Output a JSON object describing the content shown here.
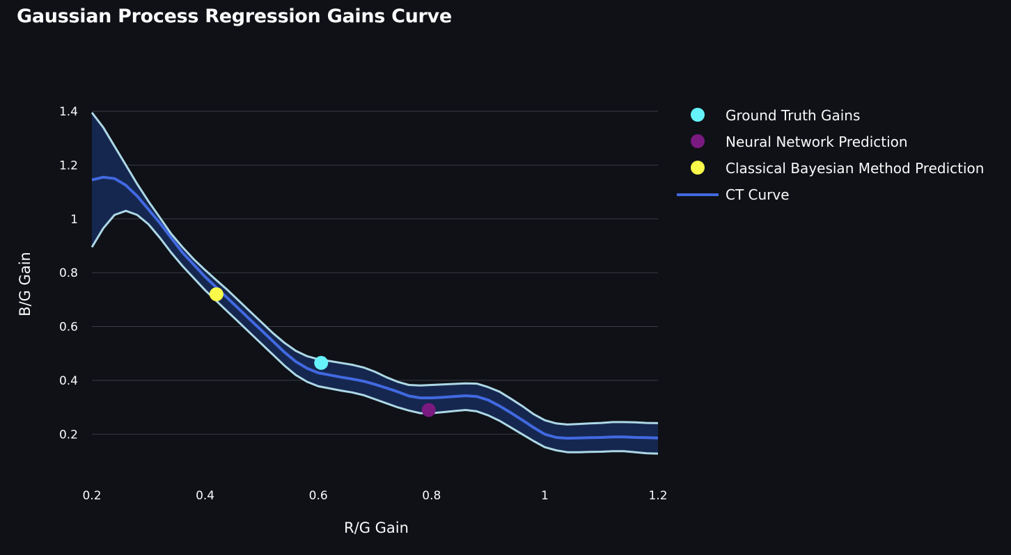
{
  "chart_data": {
    "type": "line",
    "title": "Gaussian Process Regression Gains Curve",
    "xlabel": "R/G Gain",
    "ylabel": "B/G Gain",
    "xlim": [
      0.2,
      1.2
    ],
    "ylim": [
      0.1,
      1.4
    ],
    "x_ticks": [
      "0.2",
      "0.4",
      "0.6",
      "0.8",
      "1",
      "1.2"
    ],
    "y_ticks": [
      "0.2",
      "0.4",
      "0.6",
      "0.8",
      "1",
      "1.2",
      "1.4"
    ],
    "grid": true,
    "legend_position": "right",
    "colors": {
      "background": "#0f1117",
      "grid": "#3a3d46",
      "ct_curve": "#4169e1",
      "band_fill": "#16274f",
      "band_edge": "#add8e6",
      "ground_truth": "#66f2fa",
      "neural_network": "#7a1a80",
      "bayesian": "#fafa4a"
    },
    "ct_curve": {
      "name": "CT Curve",
      "x": [
        0.2,
        0.22,
        0.24,
        0.26,
        0.28,
        0.3,
        0.32,
        0.34,
        0.36,
        0.38,
        0.4,
        0.42,
        0.44,
        0.46,
        0.48,
        0.5,
        0.52,
        0.54,
        0.56,
        0.58,
        0.6,
        0.62,
        0.64,
        0.66,
        0.68,
        0.7,
        0.72,
        0.74,
        0.76,
        0.78,
        0.8,
        0.82,
        0.84,
        0.86,
        0.88,
        0.9,
        0.92,
        0.94,
        0.96,
        0.98,
        1.0,
        1.02,
        1.04,
        1.06,
        1.08,
        1.1,
        1.12,
        1.14,
        1.16,
        1.18,
        1.2
      ],
      "y": [
        1.145,
        1.155,
        1.15,
        1.125,
        1.085,
        1.035,
        0.985,
        0.93,
        0.875,
        0.83,
        0.785,
        0.745,
        0.705,
        0.665,
        0.625,
        0.585,
        0.545,
        0.505,
        0.47,
        0.445,
        0.428,
        0.42,
        0.412,
        0.405,
        0.397,
        0.385,
        0.372,
        0.358,
        0.342,
        0.335,
        0.335,
        0.337,
        0.34,
        0.343,
        0.34,
        0.327,
        0.305,
        0.28,
        0.253,
        0.225,
        0.2,
        0.188,
        0.185,
        0.186,
        0.187,
        0.188,
        0.19,
        0.19,
        0.188,
        0.187,
        0.186
      ]
    },
    "upper_band": {
      "x": [
        0.2,
        0.22,
        0.24,
        0.26,
        0.28,
        0.3,
        0.32,
        0.34,
        0.36,
        0.38,
        0.4,
        0.42,
        0.44,
        0.46,
        0.48,
        0.5,
        0.52,
        0.54,
        0.56,
        0.58,
        0.6,
        0.62,
        0.64,
        0.66,
        0.68,
        0.7,
        0.72,
        0.74,
        0.76,
        0.78,
        0.8,
        0.82,
        0.84,
        0.86,
        0.88,
        0.9,
        0.92,
        0.94,
        0.96,
        0.98,
        1.0,
        1.02,
        1.04,
        1.06,
        1.08,
        1.1,
        1.12,
        1.14,
        1.16,
        1.18,
        1.2
      ],
      "y": [
        1.395,
        1.34,
        1.27,
        1.2,
        1.13,
        1.065,
        1.005,
        0.945,
        0.895,
        0.85,
        0.81,
        0.772,
        0.735,
        0.695,
        0.655,
        0.615,
        0.575,
        0.54,
        0.51,
        0.49,
        0.478,
        0.472,
        0.465,
        0.458,
        0.448,
        0.432,
        0.412,
        0.395,
        0.383,
        0.381,
        0.383,
        0.385,
        0.387,
        0.389,
        0.388,
        0.375,
        0.358,
        0.332,
        0.305,
        0.275,
        0.252,
        0.24,
        0.236,
        0.238,
        0.24,
        0.242,
        0.245,
        0.245,
        0.244,
        0.242,
        0.241
      ]
    },
    "lower_band": {
      "x": [
        0.2,
        0.22,
        0.24,
        0.26,
        0.28,
        0.3,
        0.32,
        0.34,
        0.36,
        0.38,
        0.4,
        0.42,
        0.44,
        0.46,
        0.48,
        0.5,
        0.52,
        0.54,
        0.56,
        0.58,
        0.6,
        0.62,
        0.64,
        0.66,
        0.68,
        0.7,
        0.72,
        0.74,
        0.76,
        0.78,
        0.8,
        0.82,
        0.84,
        0.86,
        0.88,
        0.9,
        0.92,
        0.94,
        0.96,
        0.98,
        1.0,
        1.02,
        1.04,
        1.06,
        1.08,
        1.1,
        1.12,
        1.14,
        1.16,
        1.18,
        1.2
      ],
      "y": [
        0.895,
        0.965,
        1.015,
        1.03,
        1.015,
        0.98,
        0.93,
        0.875,
        0.825,
        0.78,
        0.735,
        0.695,
        0.655,
        0.615,
        0.575,
        0.535,
        0.495,
        0.455,
        0.42,
        0.395,
        0.378,
        0.37,
        0.362,
        0.355,
        0.345,
        0.33,
        0.315,
        0.3,
        0.288,
        0.278,
        0.278,
        0.282,
        0.286,
        0.29,
        0.285,
        0.27,
        0.25,
        0.225,
        0.2,
        0.175,
        0.152,
        0.14,
        0.133,
        0.133,
        0.134,
        0.135,
        0.137,
        0.137,
        0.133,
        0.129,
        0.128
      ]
    },
    "points": [
      {
        "name": "Ground Truth Gains",
        "x": 0.605,
        "y": 0.465,
        "color": "#66f2fa"
      },
      {
        "name": "Neural Network Prediction",
        "x": 0.795,
        "y": 0.29,
        "color": "#7a1a80"
      },
      {
        "name": "Classical Bayesian Method Prediction",
        "x": 0.42,
        "y": 0.72,
        "color": "#fafa4a"
      }
    ],
    "legend": [
      {
        "label": "Ground Truth Gains",
        "symbol": "dot",
        "color": "#66f2fa"
      },
      {
        "label": "Neural Network Prediction",
        "symbol": "dot",
        "color": "#7a1a80"
      },
      {
        "label": "Classical Bayesian Method Prediction",
        "symbol": "dot",
        "color": "#fafa4a"
      },
      {
        "label": "CT Curve",
        "symbol": "line",
        "color": "#4169e1"
      }
    ]
  }
}
